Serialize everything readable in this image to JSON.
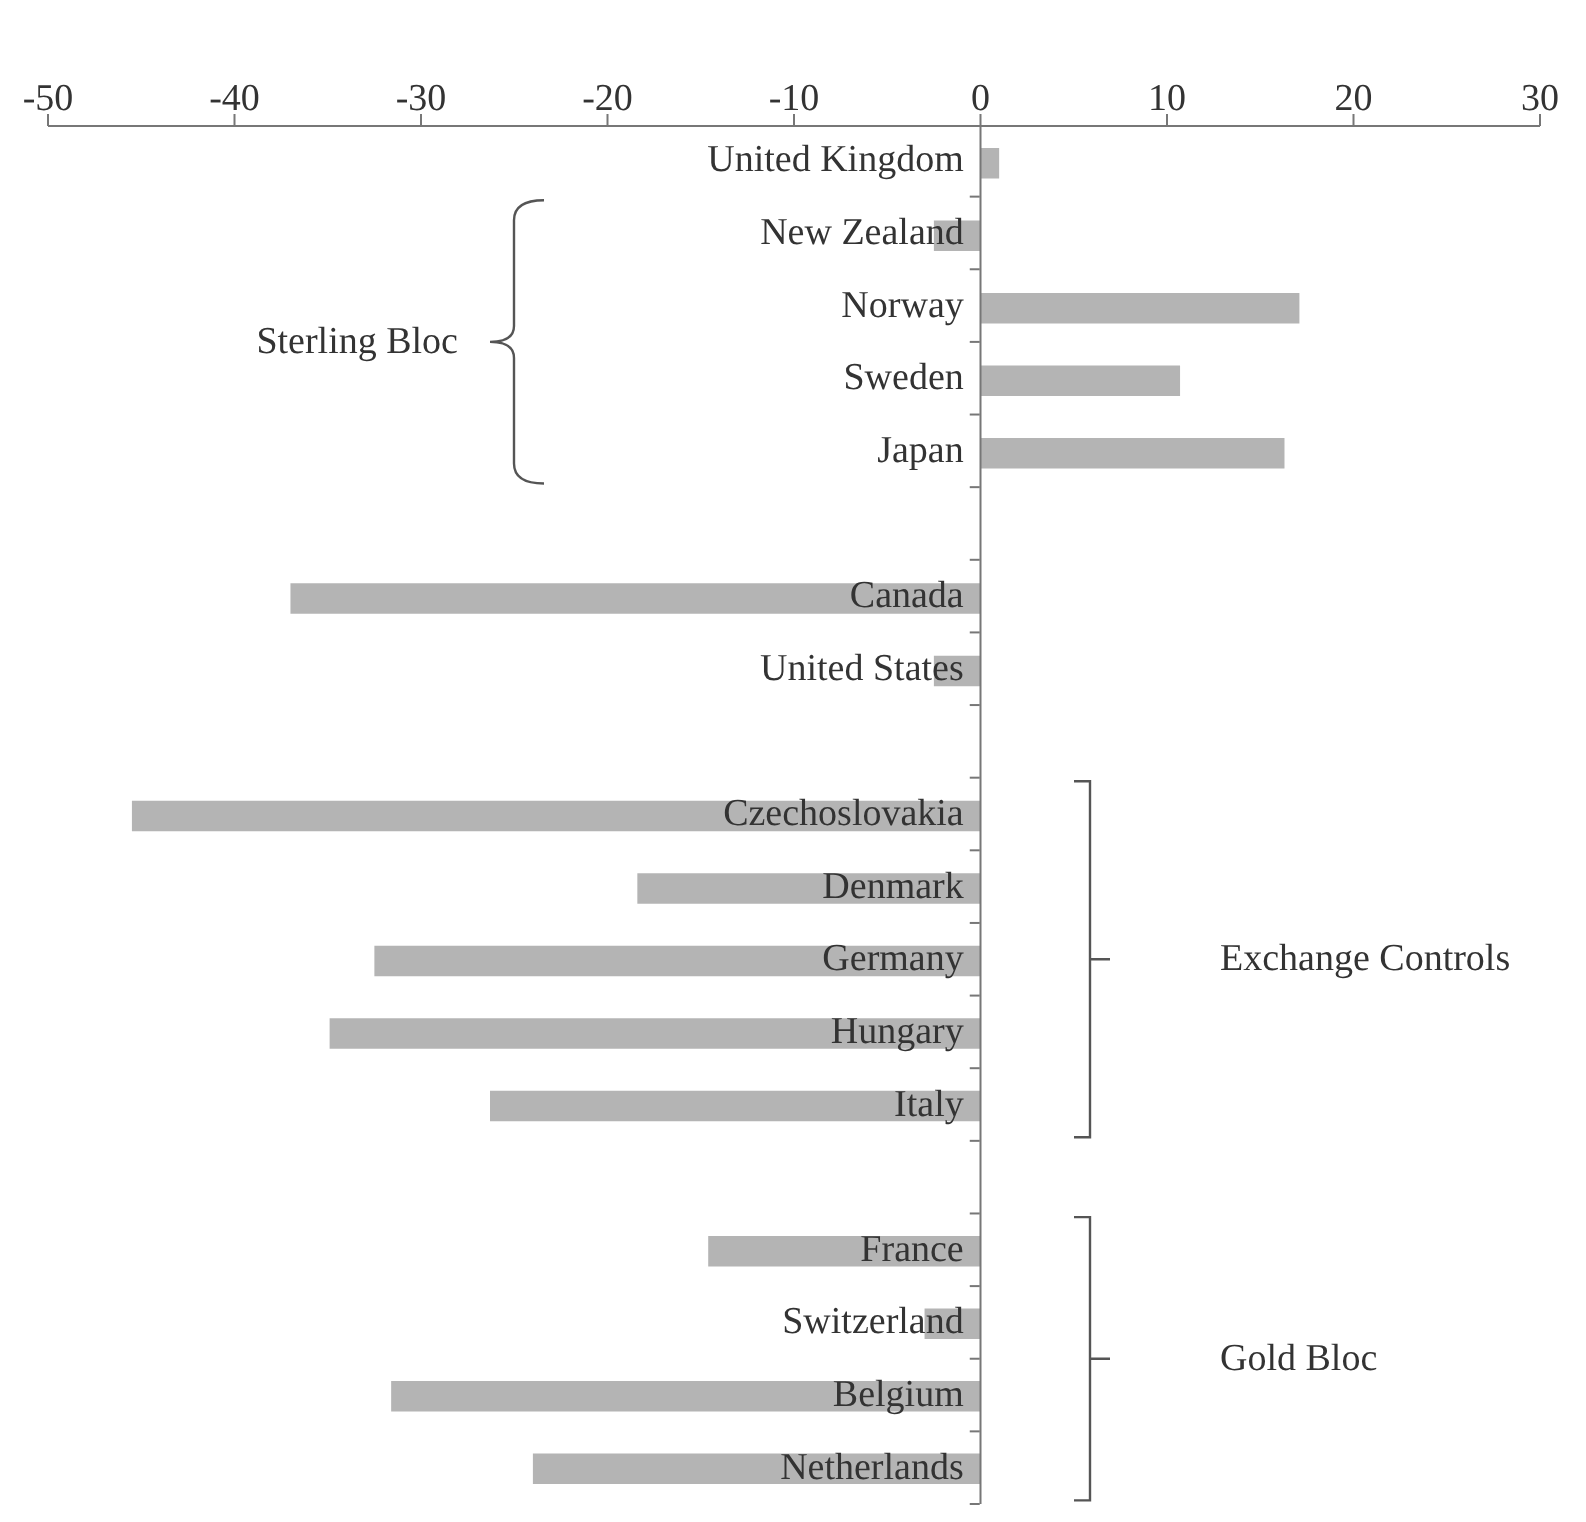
{
  "chart_data": {
    "type": "bar",
    "orientation": "horizontal",
    "categories": [
      "United Kingdom",
      "New Zealand",
      "Norway",
      "Sweden",
      "Japan",
      null,
      "Canada",
      "United States",
      null,
      "Czechoslovakia",
      "Denmark",
      "Germany",
      "Hungary",
      "Italy",
      null,
      "France",
      "Switzerland",
      "Belgium",
      "Netherlands"
    ],
    "values": [
      1.0,
      -2.5,
      17.1,
      10.7,
      16.3,
      null,
      -37.0,
      -2.5,
      null,
      -45.5,
      -18.4,
      -32.5,
      -34.9,
      -26.3,
      null,
      -14.6,
      -3.0,
      -31.6,
      -24.0
    ],
    "color": "#b4b4b4",
    "xlim": [
      -50,
      30
    ],
    "xticks": [
      -50,
      -40,
      -30,
      -20,
      -10,
      0,
      10,
      20,
      30
    ],
    "annotations": [
      "Sterling Bloc",
      "Exchange Controls",
      "Gold Bloc"
    ]
  }
}
